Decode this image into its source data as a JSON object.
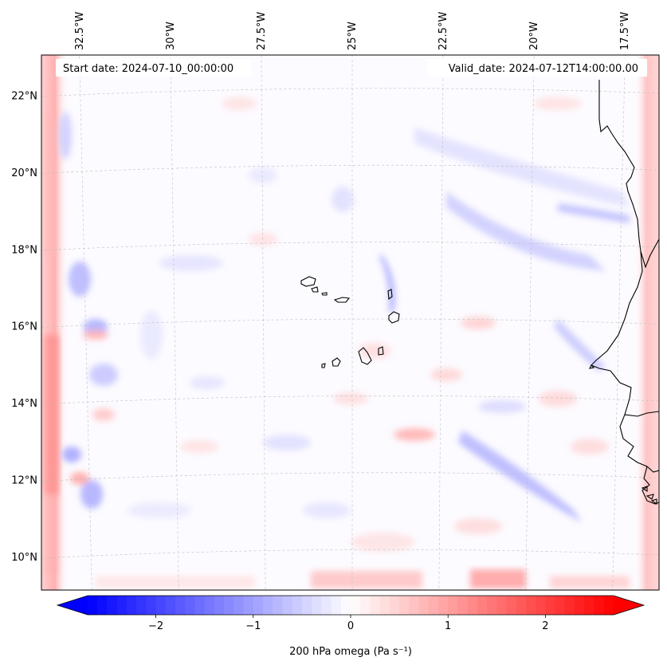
{
  "map": {
    "title_left": "Start date: 2024-07-10_00:00:00",
    "title_right": "Valid_date: 2024-07-12T14:00:00.00",
    "projection": "lambert-conformal",
    "extent": {
      "lon_min": -32.6,
      "lon_max": -15.4,
      "lat_min": 8.9,
      "lat_max": 22.8
    },
    "lon_ticks": [
      {
        "lon": -32.5,
        "label": "32.5°W"
      },
      {
        "lon": -30.0,
        "label": "30°W"
      },
      {
        "lon": -27.5,
        "label": "27.5°W"
      },
      {
        "lon": -25.0,
        "label": "25°W"
      },
      {
        "lon": -22.5,
        "label": "22.5°W"
      },
      {
        "lon": -20.0,
        "label": "20°W"
      },
      {
        "lon": -17.5,
        "label": "17.5°W"
      }
    ],
    "lat_ticks": [
      {
        "lat": 22,
        "label": "22°N"
      },
      {
        "lat": 20,
        "label": "20°N"
      },
      {
        "lat": 18,
        "label": "18°N"
      },
      {
        "lat": 16,
        "label": "16°N"
      },
      {
        "lat": 14,
        "label": "14°N"
      },
      {
        "lat": 12,
        "label": "12°N"
      },
      {
        "lat": 10,
        "label": "10°N"
      }
    ],
    "features": [
      "Cape Verde islands",
      "West African coastline (Mauritania, Senegal, Gambia, Guinea-Bissau)"
    ]
  },
  "colorbar": {
    "label": "200 hPa omega (Pa s⁻¹)",
    "range": [
      -2.7,
      2.7
    ],
    "extend": "both",
    "colormap": "bwr",
    "ticks": [
      {
        "value": -2,
        "label": "−2"
      },
      {
        "value": -1,
        "label": "−1"
      },
      {
        "value": 0,
        "label": "0"
      },
      {
        "value": 1,
        "label": "1"
      },
      {
        "value": 2,
        "label": "2"
      }
    ],
    "colors": {
      "min": "#0000ff",
      "mid": "#ffffff",
      "max": "#ff0000"
    }
  }
}
